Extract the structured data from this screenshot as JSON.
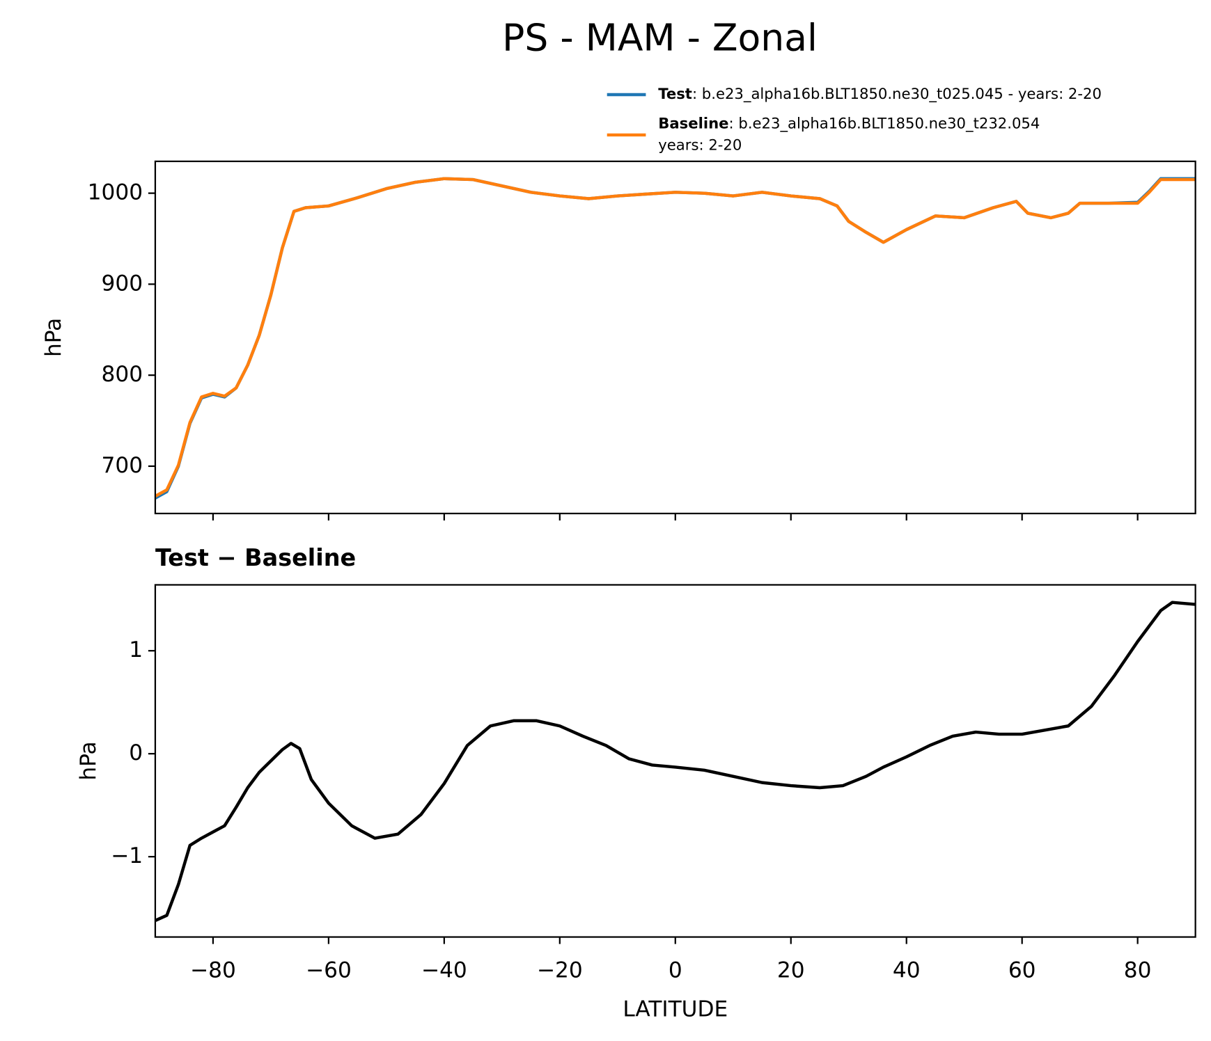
{
  "chart_data": [
    {
      "type": "line",
      "title": "PS - MAM - Zonal",
      "ylabel": "hPa",
      "x": [
        -90,
        -88,
        -86,
        -84,
        -82,
        -80,
        -78,
        -76,
        -74,
        -72,
        -70,
        -68,
        -66,
        -64,
        -60,
        -55,
        -50,
        -45,
        -40,
        -35,
        -30,
        -25,
        -20,
        -15,
        -10,
        -5,
        0,
        5,
        10,
        15,
        20,
        25,
        28,
        30,
        33,
        36,
        40,
        45,
        50,
        55,
        59,
        61,
        65,
        68,
        70,
        75,
        80,
        82,
        84,
        90
      ],
      "series": [
        {
          "name": "Test",
          "description": [
            ": b.e23_alpha16b.BLT1850.ne30_t025.045 - years: 2-20"
          ],
          "color": "#1f77b4",
          "values": [
            665,
            672,
            700,
            747,
            775,
            779,
            776,
            786,
            811,
            844,
            888,
            940,
            980,
            984,
            986,
            995,
            1005,
            1012,
            1016,
            1015,
            1008,
            1001,
            997,
            994,
            997,
            999,
            1001,
            1000,
            997,
            1001,
            997,
            994,
            986,
            969,
            957,
            946,
            960,
            975,
            973,
            984,
            991,
            978,
            973,
            978,
            989,
            989,
            990,
            1002,
            1016,
            1016
          ]
        },
        {
          "name": "Baseline",
          "description": [
            ": b.e23_alpha16b.BLT1850.ne30_t232.054",
            "years: 2-20"
          ],
          "color": "#ff7f0e",
          "values": [
            667,
            674,
            701,
            748,
            776,
            780,
            777,
            786,
            811,
            844,
            888,
            940,
            980,
            984,
            986,
            995,
            1005,
            1012,
            1016,
            1015,
            1008,
            1001,
            997,
            994,
            997,
            999,
            1001,
            1000,
            997,
            1001,
            997,
            994,
            986,
            969,
            957,
            946,
            960,
            975,
            973,
            984,
            991,
            978,
            973,
            978,
            989,
            989,
            989,
            1001,
            1015,
            1015
          ]
        }
      ],
      "xlim": [
        -90,
        90
      ],
      "xticks": [
        -80,
        -60,
        -40,
        -20,
        0,
        20,
        40,
        60,
        80
      ],
      "ylim": [
        648,
        1035
      ],
      "yticks": [
        700,
        800,
        900,
        1000
      ]
    },
    {
      "type": "line",
      "title": "Test − Baseline",
      "ylabel": "hPa",
      "xlabel": "LATITUDE",
      "x": [
        -90,
        -88,
        -86,
        -84,
        -82,
        -80,
        -78,
        -76,
        -74,
        -72,
        -70,
        -68,
        -66.5,
        -65,
        -63,
        -60,
        -56,
        -52,
        -48,
        -44,
        -40,
        -36,
        -32,
        -28,
        -24,
        -20,
        -16,
        -12,
        -8,
        -4,
        0,
        5,
        10,
        15,
        20,
        25,
        29,
        33,
        36,
        40,
        44,
        48,
        52,
        56,
        60,
        64,
        68,
        72,
        76,
        80,
        84,
        86,
        90
      ],
      "series": [
        {
          "name": "Test − Baseline",
          "color": "#000000",
          "values": [
            -1.62,
            -1.57,
            -1.27,
            -0.89,
            -0.82,
            -0.76,
            -0.7,
            -0.52,
            -0.33,
            -0.18,
            -0.07,
            0.04,
            0.1,
            0.05,
            -0.25,
            -0.48,
            -0.7,
            -0.82,
            -0.78,
            -0.59,
            -0.29,
            0.08,
            0.27,
            0.32,
            0.32,
            0.27,
            0.17,
            0.08,
            -0.05,
            -0.11,
            -0.13,
            -0.16,
            -0.22,
            -0.28,
            -0.31,
            -0.33,
            -0.31,
            -0.22,
            -0.13,
            -0.03,
            0.08,
            0.17,
            0.21,
            0.19,
            0.19,
            0.23,
            0.27,
            0.46,
            0.76,
            1.09,
            1.39,
            1.47,
            1.45
          ]
        }
      ],
      "xlim": [
        -90,
        90
      ],
      "xticks": [
        {
          "value": -80,
          "label": "−80"
        },
        {
          "value": -60,
          "label": "−60"
        },
        {
          "value": -40,
          "label": "−40"
        },
        {
          "value": -20,
          "label": "−20"
        },
        0,
        20,
        40,
        60,
        80
      ],
      "ylim": [
        -1.78,
        1.64
      ],
      "yticks": [
        {
          "value": -1,
          "label": "−1"
        },
        0,
        1
      ]
    }
  ]
}
